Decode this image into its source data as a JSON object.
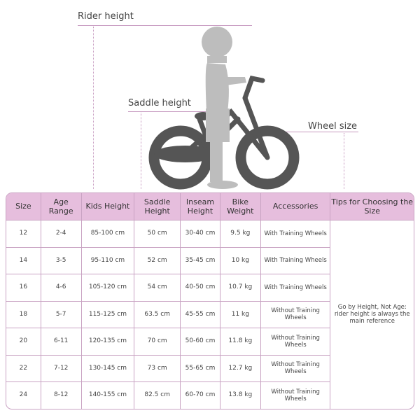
{
  "diagram": {
    "labels": {
      "rider_height": "Rider height",
      "saddle_height": "Saddle height",
      "wheel_size": "Wheel size"
    },
    "colors": {
      "accent": "#c79ac0",
      "header_bg": "#e6bedd",
      "bike": "#555555",
      "rider": "#bdbdbd"
    }
  },
  "table": {
    "headers": [
      "Size",
      "Age Range",
      "Kids Height",
      "Saddle Height",
      "Inseam Height",
      "Bike Weight",
      "Accessories",
      "Tips for Choosing the Size"
    ],
    "rows": [
      [
        "12",
        "2-4",
        "85-100 cm",
        "50 cm",
        "30-40 cm",
        "9.5 kg",
        "With Training Wheels"
      ],
      [
        "14",
        "3-5",
        "95-110 cm",
        "52 cm",
        "35-45 cm",
        "10 kg",
        "With Training Wheels"
      ],
      [
        "16",
        "4-6",
        "105-120 cm",
        "54 cm",
        "40-50 cm",
        "10.7 kg",
        "With Training Wheels"
      ],
      [
        "18",
        "5-7",
        "115-125 cm",
        "63.5 cm",
        "45-55 cm",
        "11 kg",
        "Without Training Wheels"
      ],
      [
        "20",
        "6-11",
        "120-135 cm",
        "70 cm",
        "50-60 cm",
        "11.8 kg",
        "Without Training Wheels"
      ],
      [
        "22",
        "7-12",
        "130-145 cm",
        "73 cm",
        "55-65 cm",
        "12.7 kg",
        "Without Training Wheels"
      ],
      [
        "24",
        "8-12",
        "140-155 cm",
        "82.5 cm",
        "60-70 cm",
        "13.8 kg",
        "Without Training Wheels"
      ]
    ],
    "tip": "Go by Height, Not Age: rider height is always the main reference"
  }
}
